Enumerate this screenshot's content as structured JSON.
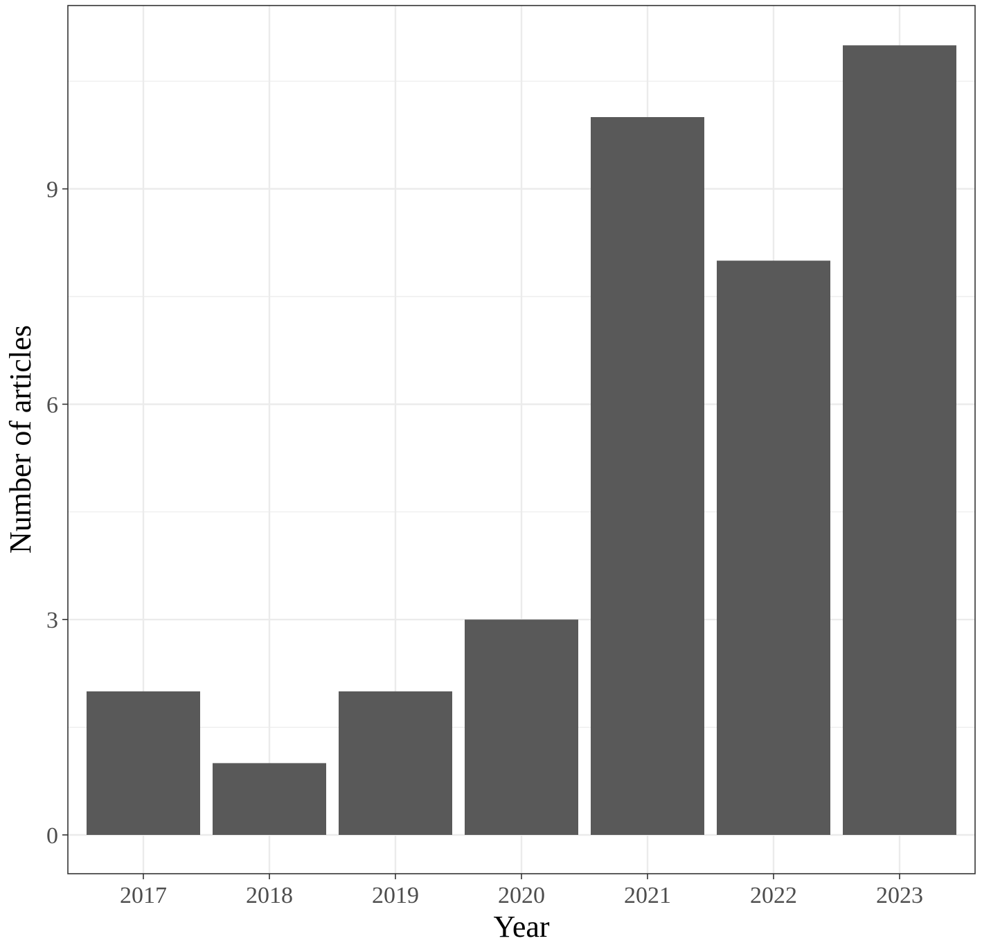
{
  "chart_data": {
    "type": "bar",
    "title": "",
    "xlabel": "Year",
    "ylabel": "Number of articles",
    "categories": [
      "2017",
      "2018",
      "2019",
      "2020",
      "2021",
      "2022",
      "2023"
    ],
    "values": [
      2,
      1,
      2,
      3,
      10,
      8,
      11
    ],
    "ylim": [
      0,
      11
    ],
    "y_ticks": [
      0,
      3,
      6,
      9
    ],
    "y_tick_labels": [
      "0",
      "3",
      "6",
      "9"
    ],
    "grid": true,
    "legend": "none",
    "colors": {
      "bar": "#595959",
      "grid": "#ebebeb",
      "panel_border": "#333333",
      "tick_text": "#4d4d4d",
      "title_text": "#000000"
    }
  }
}
